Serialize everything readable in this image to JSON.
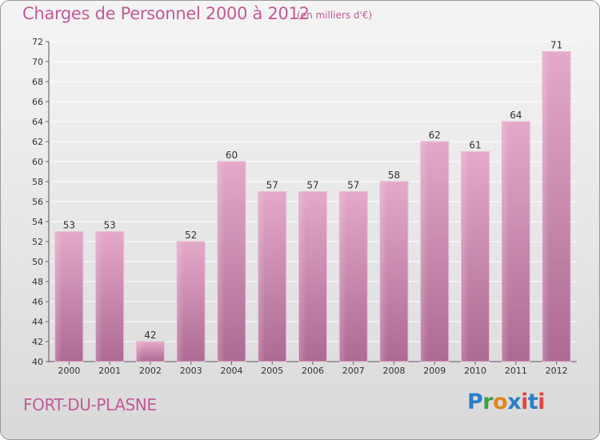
{
  "title": "Charges de Personnel 2000 à 2012",
  "subtitle": "(en milliers d'€)",
  "place": "FORT-DU-PLASNE",
  "logo": {
    "text": "Proxiti",
    "letters": [
      "P",
      "r",
      "o",
      "x",
      "i",
      "t",
      "i"
    ]
  },
  "colors": {
    "bar": "#d98cb6",
    "bar_top": "#e3a7c8",
    "bar_bottom": "#b06c96",
    "accent": "#c25a96"
  },
  "chart_data": {
    "type": "bar",
    "categories": [
      "2000",
      "2001",
      "2002",
      "2003",
      "2004",
      "2005",
      "2006",
      "2007",
      "2008",
      "2009",
      "2010",
      "2011",
      "2012"
    ],
    "values": [
      53,
      53,
      42,
      52,
      60,
      57,
      57,
      57,
      58,
      62,
      61,
      64,
      71
    ],
    "ylim": [
      40,
      72
    ],
    "yticks": [
      40,
      42,
      44,
      46,
      48,
      50,
      52,
      54,
      56,
      58,
      60,
      62,
      64,
      66,
      68,
      70,
      72
    ],
    "grid": true
  }
}
